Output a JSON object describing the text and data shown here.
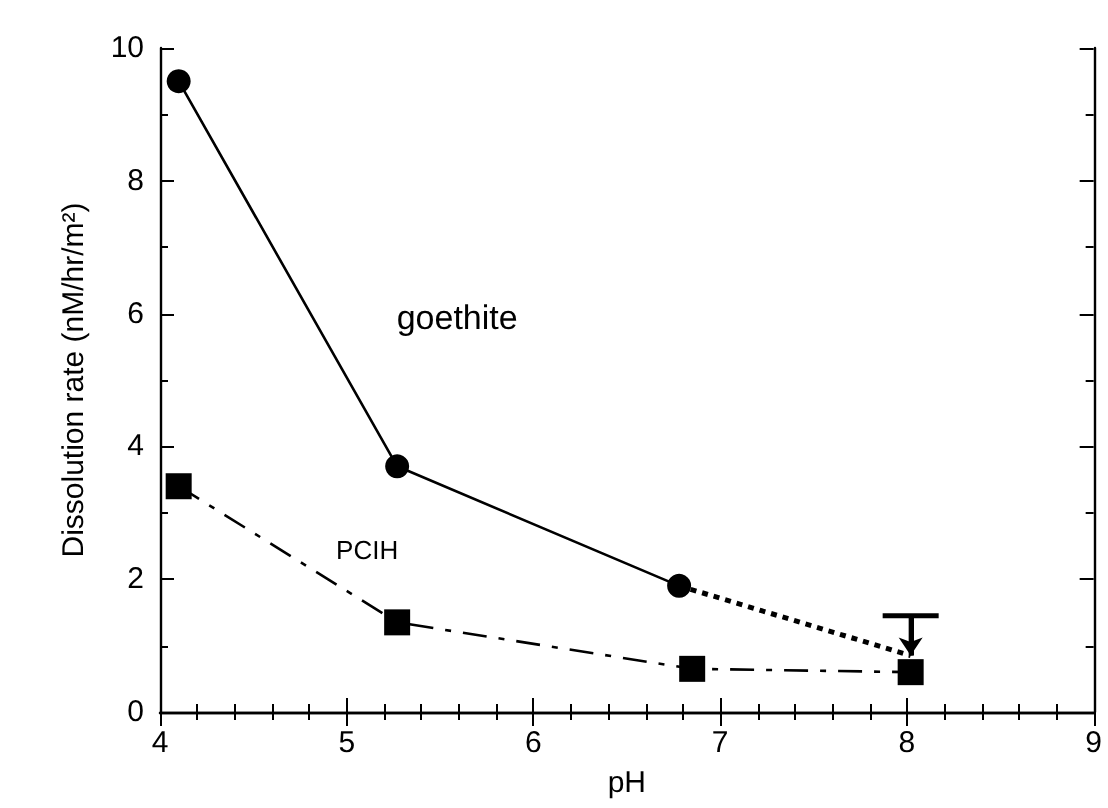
{
  "chart_data": {
    "type": "line",
    "xlabel": "pH",
    "ylabel": "Dissolution rate (nM/hr/m²)",
    "xlim": [
      4,
      9
    ],
    "xticks": [
      4,
      5,
      6,
      7,
      8,
      9
    ],
    "ylim": [
      0,
      10
    ],
    "yticks": [
      0,
      2,
      4,
      6,
      8,
      10
    ],
    "grid": false,
    "legend": false,
    "series": [
      {
        "name": "goethite",
        "color": "#000000",
        "marker": "circle",
        "line_style": "solid",
        "x": [
          4.1,
          5.27,
          6.78
        ],
        "values": [
          9.5,
          3.7,
          1.9
        ]
      },
      {
        "color": "#000000",
        "marker": "none",
        "line_style": "dotted",
        "x": [
          6.78,
          8.02
        ],
        "values": [
          1.9,
          0.85
        ],
        "errors": [
          null,
          [
            0.85,
            1.45
          ]
        ]
      },
      {
        "name": "PCIH",
        "color": "#000000",
        "marker": "square",
        "line_style": "dashed",
        "x": [
          4.1,
          5.27,
          6.85,
          8.02
        ],
        "values": [
          3.4,
          1.35,
          0.65,
          0.6
        ]
      }
    ]
  }
}
